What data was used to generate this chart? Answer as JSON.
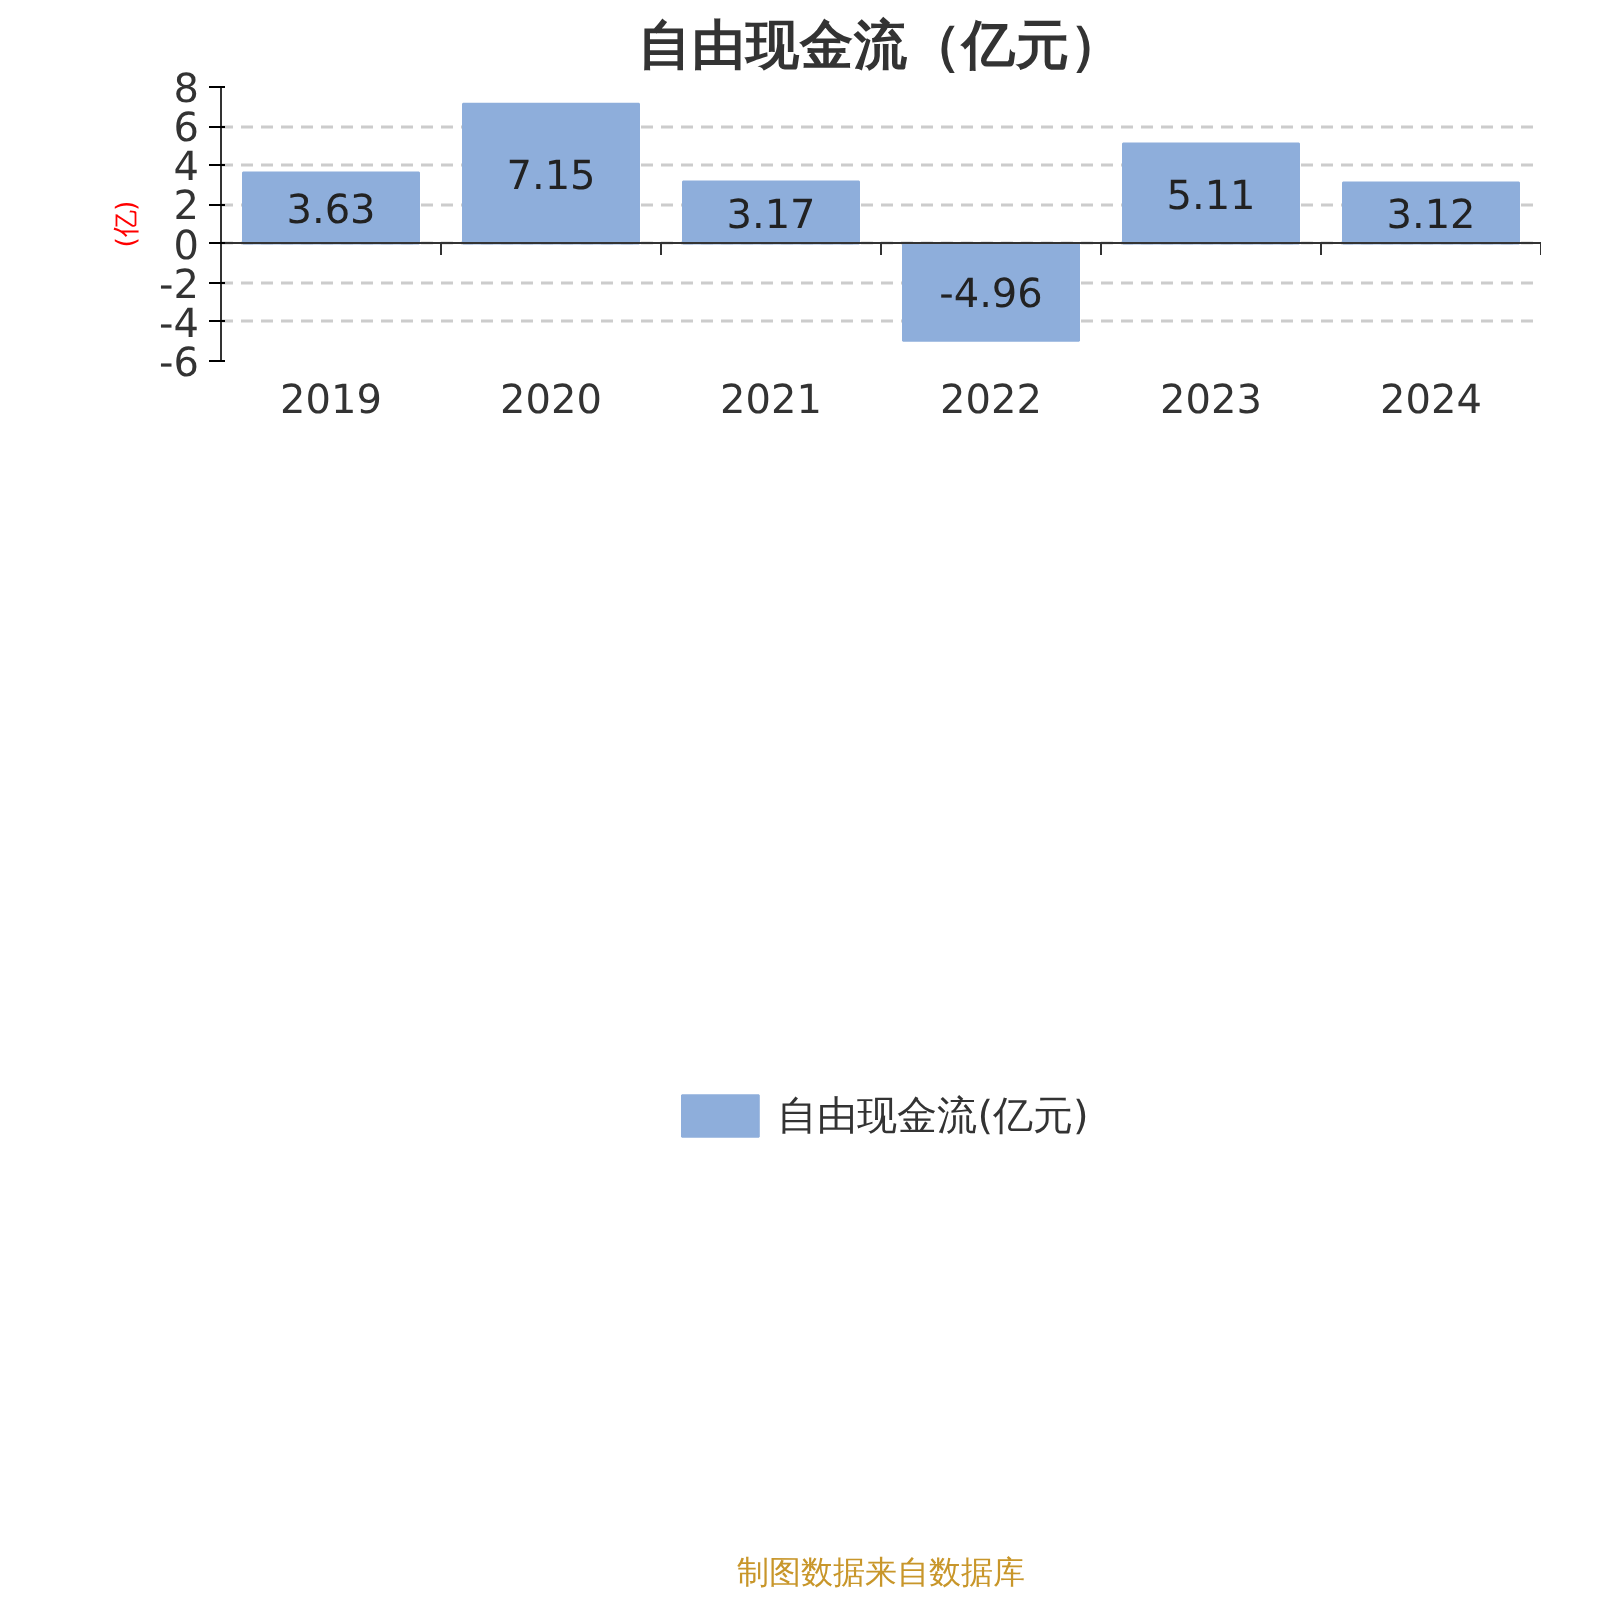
{
  "chart_data": {
    "type": "bar",
    "title": "自由现金流（亿元）",
    "ylabel": "(亿)",
    "categories": [
      "2019",
      "2020",
      "2021",
      "2022",
      "2023",
      "2024"
    ],
    "series": [
      {
        "name": "自由现金流(亿元)",
        "color": "#8eaedb",
        "values": [
          3.63,
          7.15,
          3.17,
          -4.96,
          5.11,
          3.12
        ]
      }
    ],
    "ylim": [
      -6,
      8
    ],
    "yticks": [
      -6,
      -4,
      -2,
      0,
      2,
      4,
      6,
      8
    ],
    "grid": "y",
    "legend": "bottom",
    "data_labels": true,
    "annotations": [
      "制图数据来自数据库"
    ]
  }
}
